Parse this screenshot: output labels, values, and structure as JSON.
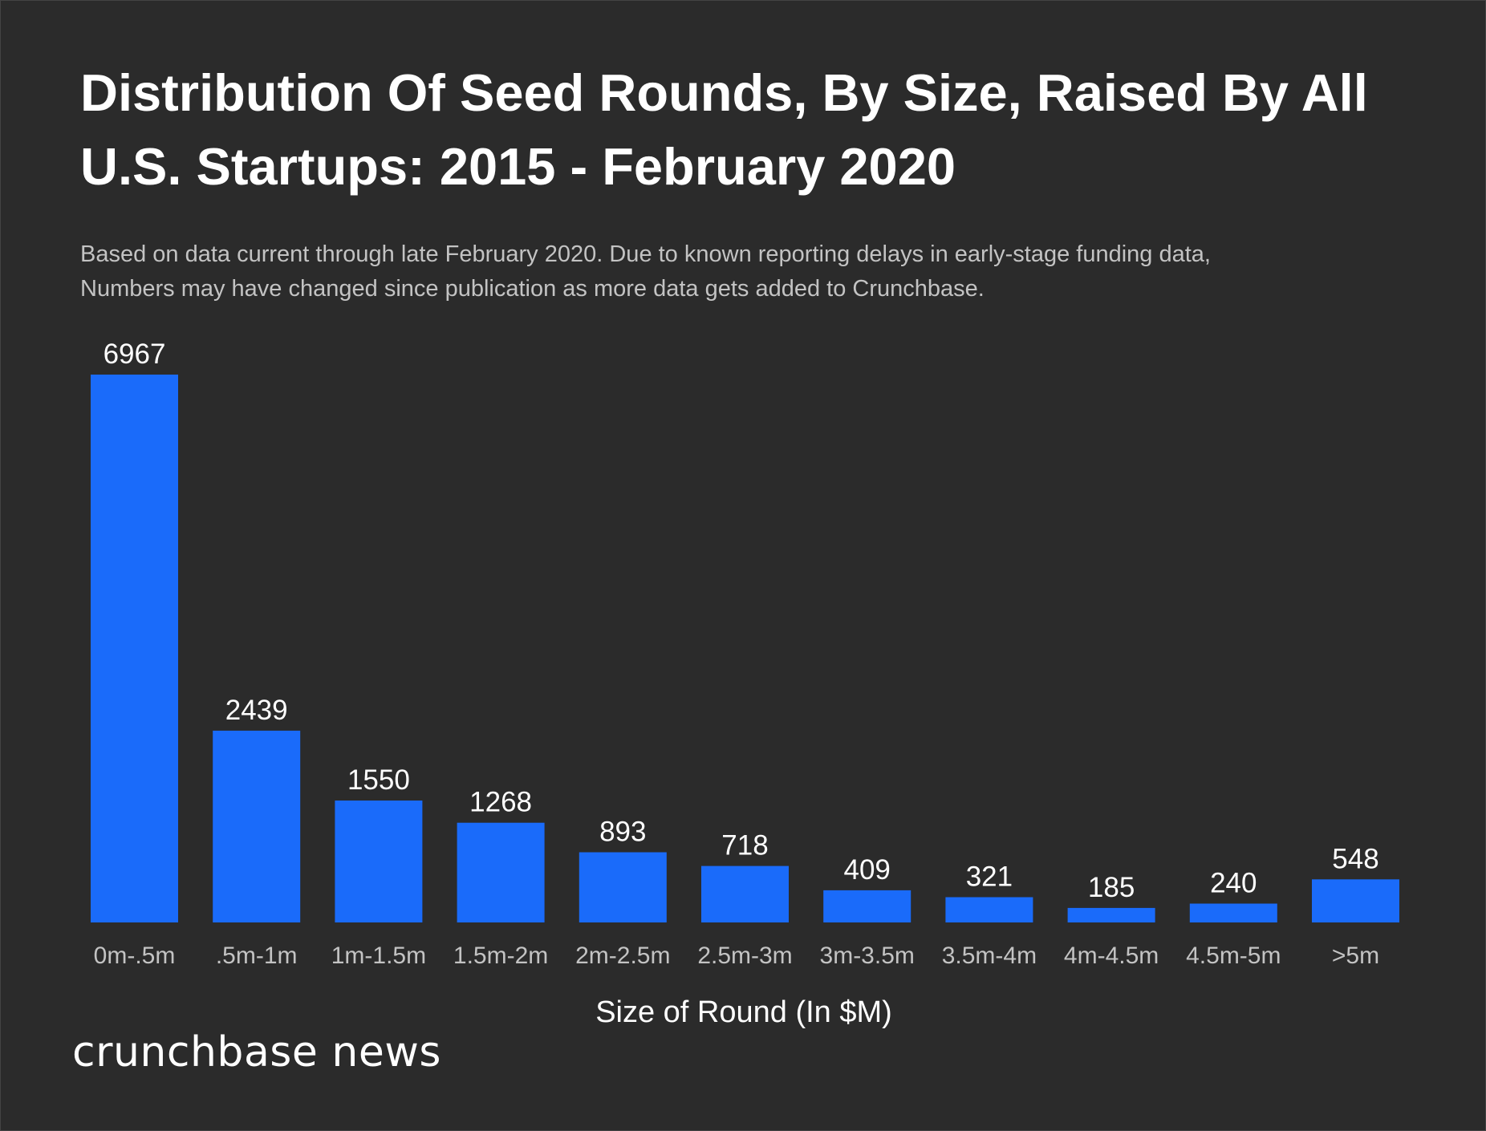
{
  "header": {
    "title_line1": "Distribution Of Seed Rounds, By Size, Raised By All",
    "title_line2": "U.S. Startups: 2015 - February 2020",
    "subtitle_line1": "Based on data current through late February 2020. Due to known reporting delays in early-stage funding data,",
    "subtitle_line2": "Numbers may have changed since publication as more data gets added to Crunchbase."
  },
  "chart_data": {
    "type": "bar",
    "title": "Distribution Of Seed Rounds, By Size, Raised By All U.S. Startups: 2015 - February 2020",
    "xlabel": "Size of Round (In $M)",
    "ylabel": "",
    "categories": [
      "0m-.5m",
      ".5m-1m",
      "1m-1.5m",
      "1.5m-2m",
      "2m-2.5m",
      "2.5m-3m",
      "3m-3.5m",
      "3.5m-4m",
      "4m-4.5m",
      "4.5m-5m",
      ">5m"
    ],
    "values": [
      6967,
      2439,
      1550,
      1268,
      893,
      718,
      409,
      321,
      185,
      240,
      548
    ],
    "ylim": [
      0,
      6967
    ],
    "grid": false,
    "data_labels": true,
    "bar_color": "#1a6bfa"
  },
  "footer": {
    "brand": "crunchbase news"
  },
  "colors": {
    "background": "#2b2b2b",
    "bar": "#1a6bfa",
    "text": "#ffffff",
    "muted_text": "#c3c3c3"
  }
}
